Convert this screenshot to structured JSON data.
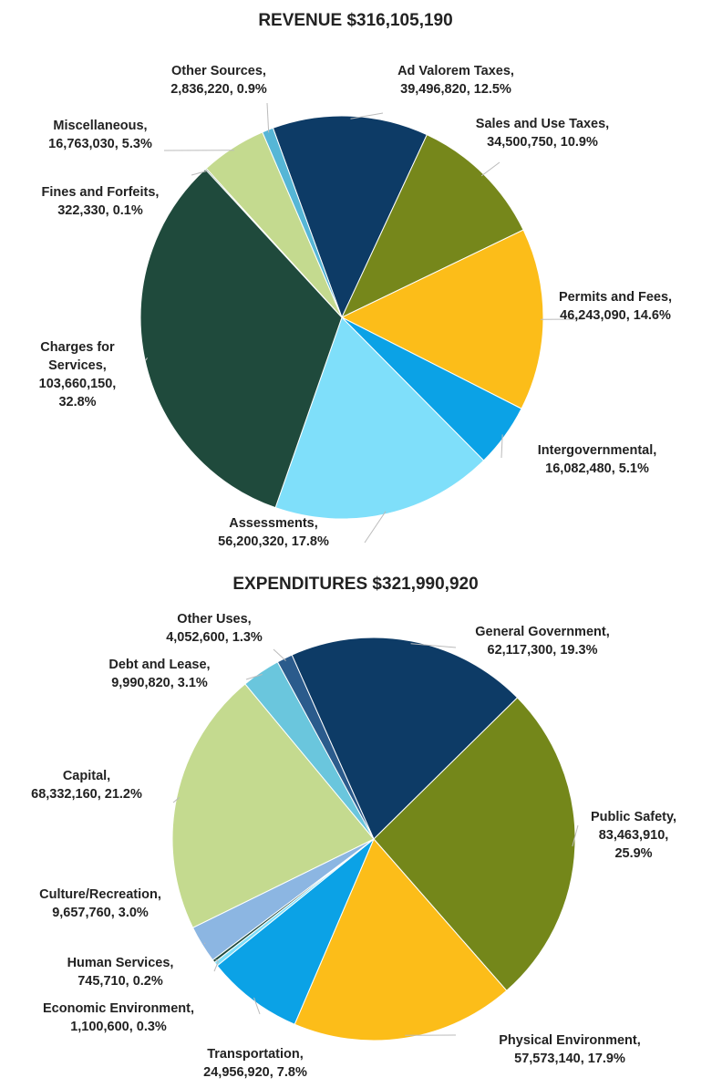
{
  "chart_data": [
    {
      "type": "pie",
      "title": "REVENUE $316,105,190",
      "categories": [
        "Ad Valorem Taxes,",
        "Sales and Use Taxes,",
        "Permits and Fees,",
        "Intergovernmental,",
        "Assessments,",
        "Charges for Services,",
        "Fines and Forfeits,",
        "Miscellaneous,",
        "Other Sources,"
      ],
      "values": [
        39496820,
        34500750,
        46243090,
        16082480,
        56200320,
        103660150,
        322330,
        16763030,
        2836220
      ],
      "value_labels": [
        "39,496,820, 12.5%",
        "34,500,750, 10.9%",
        "46,243,090, 14.6%",
        "16,082,480, 5.1%",
        "56,200,320, 17.8%",
        "103,660,150, 32.8%",
        "322,330, 0.1%",
        "16,763,030, 5.3%",
        "2,836,220, 0.9%"
      ],
      "colors": [
        "#0d3b66",
        "#76871b",
        "#fcbd19",
        "#0ba2e6",
        "#7fdffa",
        "#1f4a3c",
        "#2d6a4f",
        "#c4da8f",
        "#56b6d6"
      ]
    },
    {
      "type": "pie",
      "title": "EXPENDITURES $321,990,920",
      "categories": [
        "General Government,",
        "Public Safety,",
        "Physical Environment,",
        "Transportation,",
        "Economic Environment,",
        "Human Services,",
        "Culture/Recreation,",
        "Capital,",
        "Debt and Lease,",
        "Other Uses,"
      ],
      "values": [
        62117300,
        83463910,
        57573140,
        24956920,
        1100600,
        745710,
        9657760,
        68332160,
        9990820,
        4052600
      ],
      "value_labels": [
        "62,117,300, 19.3%",
        "83,463,910, 25.9%",
        "57,573,140, 17.9%",
        "24,956,920, 7.8%",
        "1,100,600, 0.3%",
        "745,710, 0.2%",
        "9,657,760, 3.0%",
        "68,332,160, 21.2%",
        "9,990,820, 3.1%",
        "4,052,600, 1.3%"
      ],
      "colors": [
        "#0d3b66",
        "#74871a",
        "#fcbd19",
        "#0ba2e6",
        "#7fdffa",
        "#1f4a3c",
        "#8cb6e2",
        "#c4da8f",
        "#6ac6dd",
        "#2b5b8c"
      ]
    }
  ]
}
